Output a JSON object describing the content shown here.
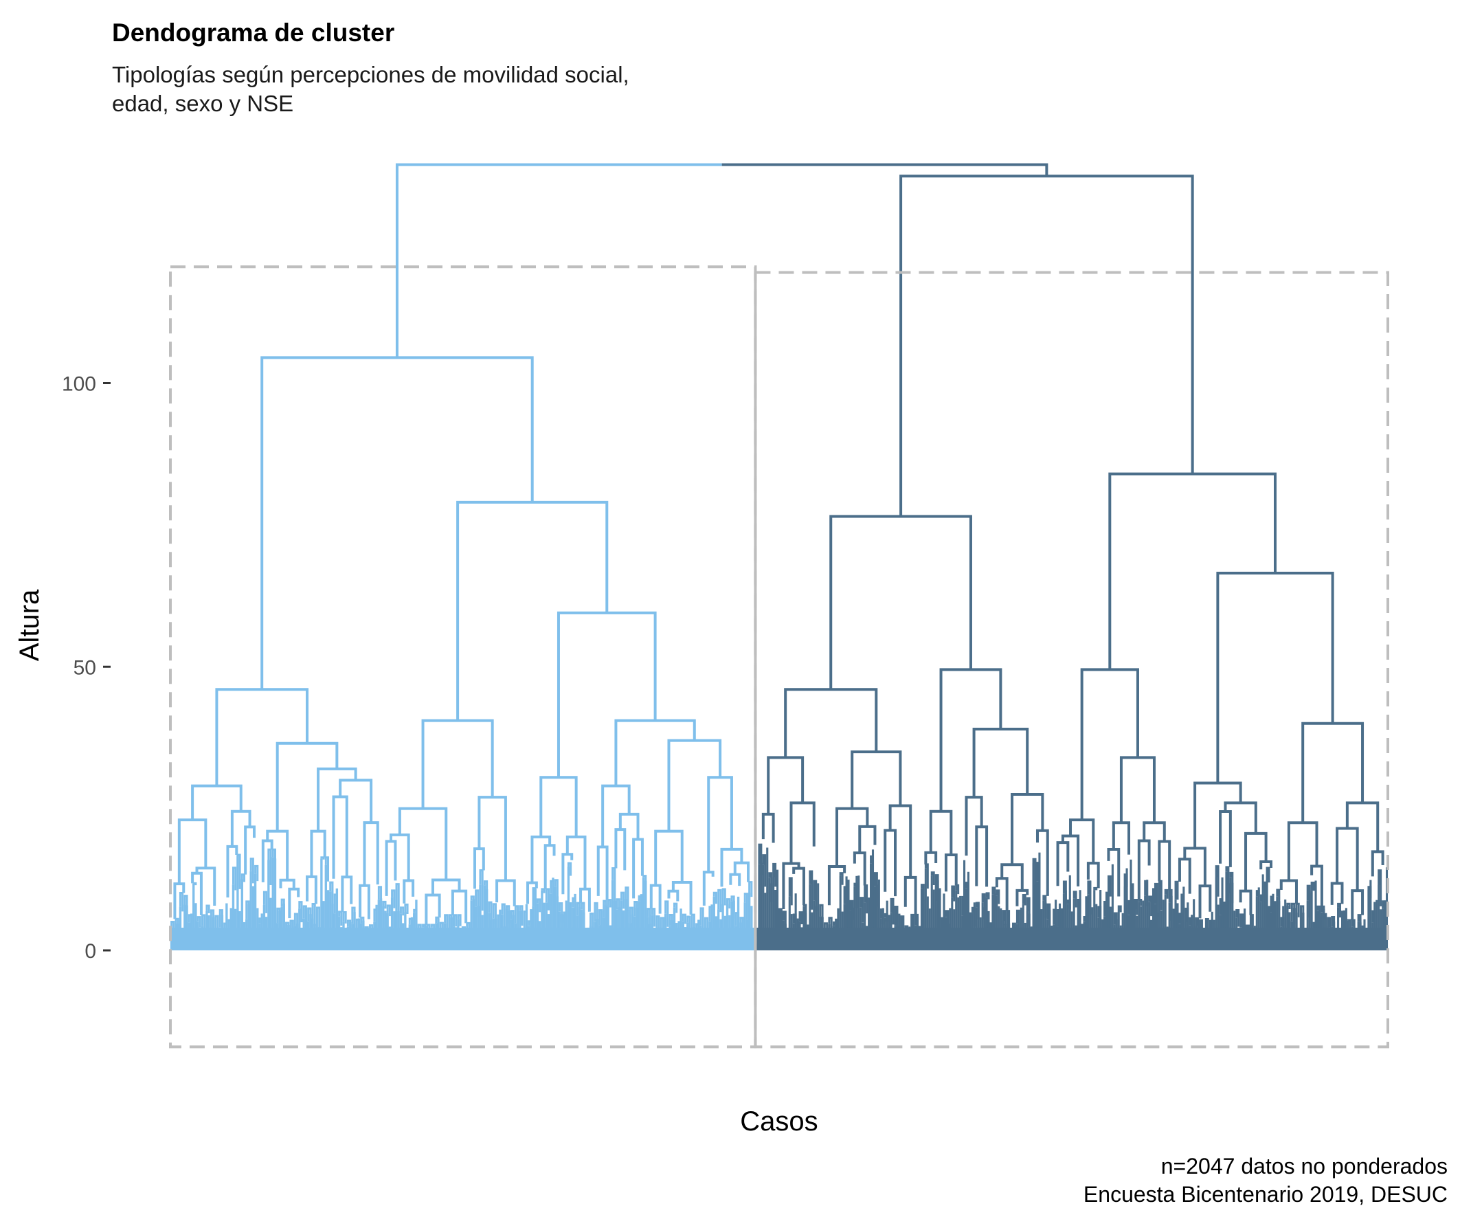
{
  "chart_data": {
    "type": "dendrogram",
    "title": "Dendograma de cluster",
    "subtitle": [
      "Tipologías según percepciones de movilidad social,",
      "edad, sexo y NSE"
    ],
    "xlabel": "Casos",
    "ylabel": "Altura",
    "ylim": [
      -17,
      139
    ],
    "yticks": [
      0,
      50,
      100
    ],
    "caption": [
      "n=2047 datos no ponderados",
      "Encuesta Bicentenario 2019, DESUC"
    ],
    "n_cases": 2047,
    "n_clusters": 2,
    "root_height": 138.5,
    "clusters": [
      {
        "name": "cluster-1",
        "color": "#7FBFEB",
        "approx_share": 0.48
      },
      {
        "name": "cluster-2",
        "color": "#4B6E8A",
        "approx_share": 0.52
      }
    ],
    "merge_heights": {
      "cluster_1": [
        104.5,
        79,
        59.5,
        46,
        40.5,
        40.5,
        36.5
      ],
      "cluster_2": [
        136.5,
        84,
        76.5,
        66.5,
        49.5,
        48.5,
        46,
        40
      ]
    },
    "colors": {
      "cluster1": "#7FBFEB",
      "cluster2": "#4B6E8A",
      "rect": "#BEBEBE",
      "tick": "#333333"
    }
  }
}
